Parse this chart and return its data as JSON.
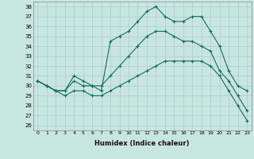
{
  "xlabel": "Humidex (Indice chaleur)",
  "xlim": [
    -0.5,
    23.5
  ],
  "ylim": [
    25.5,
    38.5
  ],
  "yticks": [
    26,
    27,
    28,
    29,
    30,
    31,
    32,
    33,
    34,
    35,
    36,
    37,
    38
  ],
  "xticks": [
    0,
    1,
    2,
    3,
    4,
    5,
    6,
    7,
    8,
    9,
    10,
    11,
    12,
    13,
    14,
    15,
    16,
    17,
    18,
    19,
    20,
    21,
    22,
    23
  ],
  "background_color": "#c8e6e0",
  "grid_color": "#aacdc8",
  "line_color": "#1a6b5a",
  "series": {
    "max": [
      30.5,
      30.0,
      29.5,
      29.5,
      31.0,
      30.5,
      30.0,
      29.5,
      34.5,
      35.0,
      35.5,
      36.5,
      37.5,
      38.0,
      37.0,
      36.5,
      36.5,
      37.0,
      37.0,
      35.5,
      34.0,
      31.5,
      30.0,
      29.5
    ],
    "mean": [
      30.5,
      30.0,
      29.5,
      29.5,
      30.5,
      30.0,
      30.0,
      30.0,
      31.0,
      32.0,
      33.0,
      34.0,
      35.0,
      35.5,
      35.5,
      35.0,
      34.5,
      34.5,
      34.0,
      33.5,
      31.5,
      30.5,
      29.0,
      27.5
    ],
    "min": [
      30.5,
      30.0,
      29.5,
      29.0,
      29.5,
      29.5,
      29.0,
      29.0,
      29.5,
      30.0,
      30.5,
      31.0,
      31.5,
      32.0,
      32.5,
      32.5,
      32.5,
      32.5,
      32.5,
      32.0,
      31.0,
      29.5,
      28.0,
      26.5
    ]
  }
}
